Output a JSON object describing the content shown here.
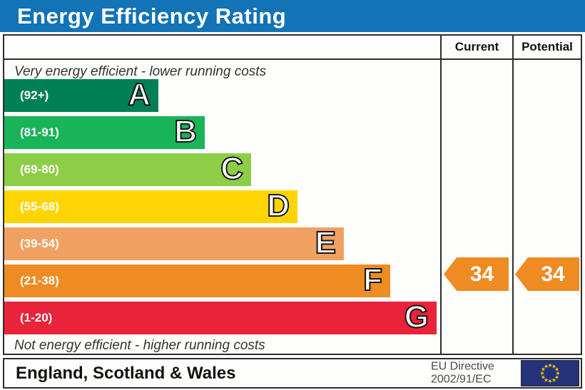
{
  "title": "Energy Efficiency Rating",
  "columns": {
    "current": "Current",
    "potential": "Potential"
  },
  "notes": {
    "top": "Very energy efficient - lower running costs",
    "bottom": "Not energy efficient - higher running costs"
  },
  "bands": [
    {
      "letter": "A",
      "range": "(92+)",
      "color": "#008054"
    },
    {
      "letter": "B",
      "range": "(81-91)",
      "color": "#19b459"
    },
    {
      "letter": "C",
      "range": "(69-80)",
      "color": "#8dce46"
    },
    {
      "letter": "D",
      "range": "(55-68)",
      "color": "#fed502"
    },
    {
      "letter": "E",
      "range": "(39-54)",
      "color": "#f0a161"
    },
    {
      "letter": "F",
      "range": "(21-38)",
      "color": "#ee8b22"
    },
    {
      "letter": "G",
      "range": "(1-20)",
      "color": "#e8233a"
    }
  ],
  "ratings": {
    "current": {
      "value": "34",
      "band": "F",
      "color": "#ee8b22"
    },
    "potential": {
      "value": "34",
      "band": "F",
      "color": "#ee8b22"
    }
  },
  "footer": {
    "region": "England, Scotland & Wales",
    "directive_line1": "EU Directive",
    "directive_line2": "2002/91/EC",
    "flag_icon": "eu-flag-icon"
  },
  "colors": {
    "title_bar": "#1273b6",
    "border": "#2d2d2d",
    "eu_flag_blue": "#25337a",
    "eu_flag_stars": "#ffcc00"
  },
  "chart_data": {
    "type": "bar",
    "title": "Energy Efficiency Rating",
    "categories": [
      "A",
      "B",
      "C",
      "D",
      "E",
      "F",
      "G"
    ],
    "band_ranges": [
      "92+",
      "81-91",
      "69-80",
      "55-68",
      "39-54",
      "21-38",
      "1-20"
    ],
    "band_colors": [
      "#008054",
      "#19b459",
      "#8dce46",
      "#fed502",
      "#f0a161",
      "#ee8b22",
      "#e8233a"
    ],
    "current_rating": 34,
    "potential_rating": 34,
    "current_band": "F",
    "potential_band": "F",
    "value_range": [
      1,
      100
    ],
    "region": "England, Scotland & Wales",
    "directive": "EU Directive 2002/91/EC"
  }
}
